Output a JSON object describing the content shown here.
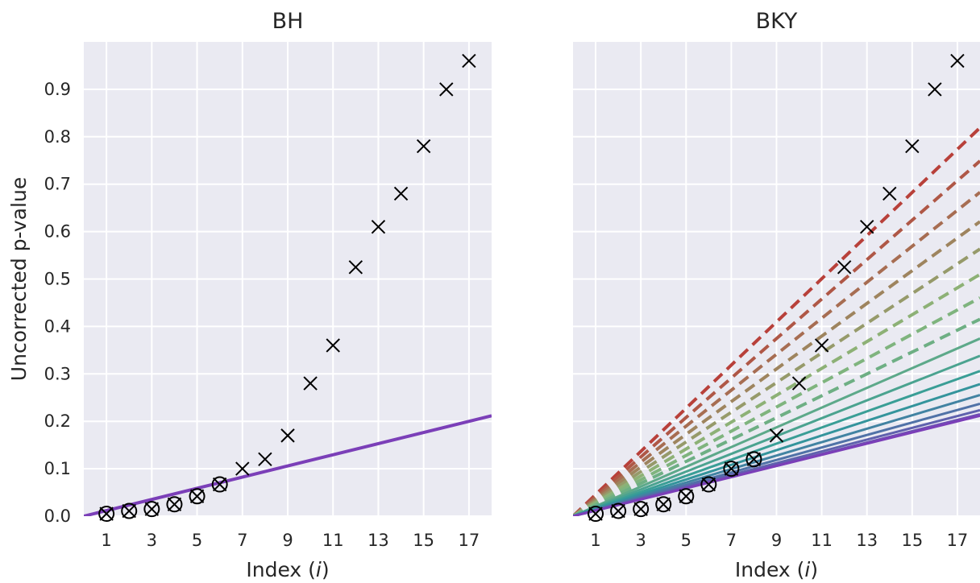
{
  "chart_data": [
    {
      "type": "scatter",
      "title": "BH",
      "xlabel_prefix": "Index (",
      "xlabel_var": "i",
      "xlabel_suffix": ")",
      "ylabel": "Uncorrected p-value",
      "xlim": [
        0,
        18
      ],
      "ylim": [
        0,
        1.0
      ],
      "xticks": [
        1,
        3,
        5,
        7,
        9,
        11,
        13,
        15,
        17
      ],
      "yticks": [
        0.0,
        0.1,
        0.2,
        0.3,
        0.4,
        0.5,
        0.6,
        0.7,
        0.8,
        0.9
      ],
      "ytick_labels": [
        "0.0",
        "0.1",
        "0.2",
        "0.3",
        "0.4",
        "0.5",
        "0.6",
        "0.7",
        "0.8",
        "0.9"
      ],
      "grid": true,
      "x": [
        1,
        2,
        3,
        4,
        5,
        6,
        7,
        8,
        9,
        10,
        11,
        12,
        13,
        14,
        15,
        16,
        17
      ],
      "p_values": [
        0.005,
        0.011,
        0.015,
        0.025,
        0.042,
        0.067,
        0.1,
        0.12,
        0.17,
        0.28,
        0.36,
        0.525,
        0.61,
        0.68,
        0.78,
        0.9,
        0.96
      ],
      "rejected_count": 6,
      "threshold_line": {
        "slope": 0.011765,
        "intercept": 0,
        "color": "#7b3fb8",
        "style": "solid"
      }
    },
    {
      "type": "scatter",
      "title": "BKY",
      "xlabel_prefix": "Index (",
      "xlabel_var": "i",
      "xlabel_suffix": ")",
      "xlim": [
        0,
        18
      ],
      "ylim": [
        0,
        1.0
      ],
      "xticks": [
        1,
        3,
        5,
        7,
        9,
        11,
        13,
        15,
        17
      ],
      "grid": true,
      "shared_y": true,
      "x": [
        1,
        2,
        3,
        4,
        5,
        6,
        7,
        8,
        9,
        10,
        11,
        12,
        13,
        14,
        15,
        16,
        17
      ],
      "p_values": [
        0.005,
        0.011,
        0.015,
        0.025,
        0.042,
        0.067,
        0.1,
        0.12,
        0.17,
        0.28,
        0.36,
        0.525,
        0.61,
        0.68,
        0.78,
        0.9,
        0.96
      ],
      "rejected_count": 8,
      "threshold_lines": {
        "count": 17,
        "slope_min": 0.011765,
        "slope_max": 0.0455,
        "dashed_count": 8,
        "color_low": "#7b3fb8",
        "color_mid": "#2f9a9a",
        "color_mid2": "#8ab87a",
        "color_high": "#b8403a"
      }
    }
  ]
}
